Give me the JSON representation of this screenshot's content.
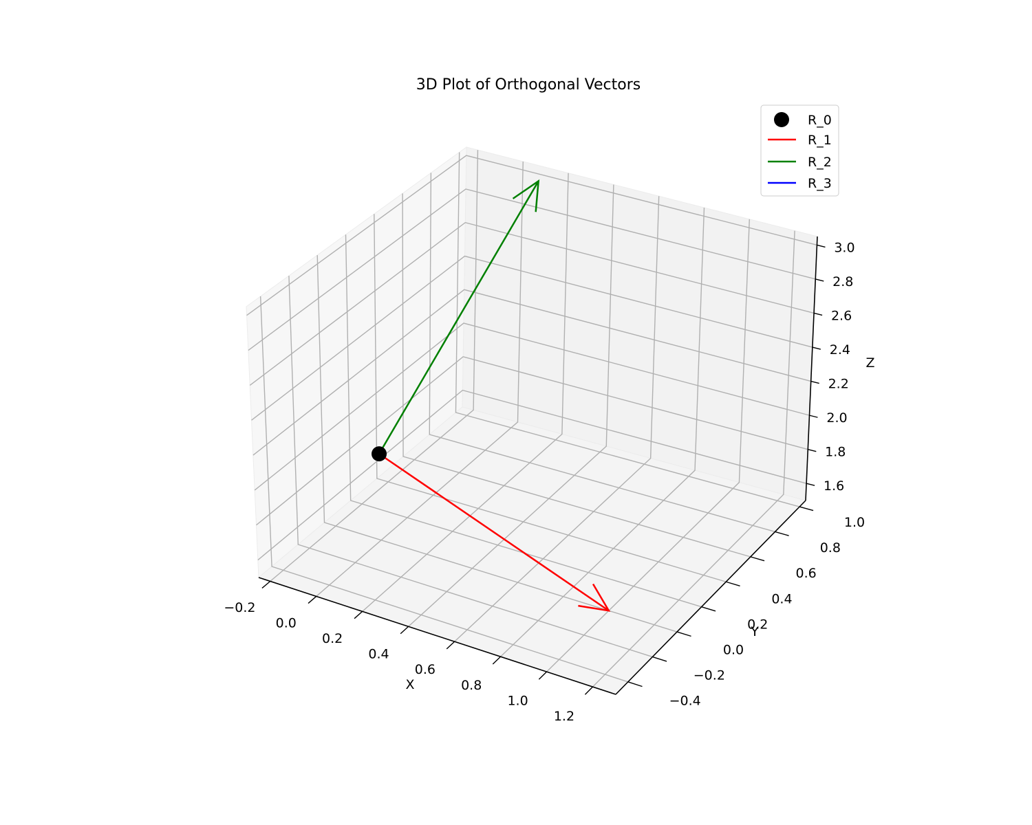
{
  "chart_data": {
    "type": "line",
    "projection": "3d",
    "title": "3D Plot of Orthogonal Vectors",
    "xlabel": "X",
    "ylabel": "Y",
    "zlabel": "Z",
    "xlim": [
      -0.25,
      1.3
    ],
    "ylim": [
      -0.5,
      1.05
    ],
    "zlim": [
      1.5,
      3.05
    ],
    "xticks": [
      "−0.2",
      "0.0",
      "0.2",
      "0.4",
      "0.6",
      "0.8",
      "1.0",
      "1.2"
    ],
    "yticks": [
      "−0.4",
      "−0.2",
      "0.0",
      "0.2",
      "0.4",
      "0.6",
      "0.8",
      "1.0"
    ],
    "zticks": [
      "1.6",
      "1.8",
      "2.0",
      "2.2",
      "2.4",
      "2.6",
      "2.8",
      "3.0"
    ],
    "grid": true,
    "legend": "top-right",
    "origin": {
      "name": "R_0",
      "x": 0.0,
      "y": 0.0,
      "z": 2.0,
      "color": "#000000"
    },
    "series": [
      {
        "name": "R_1",
        "color": "#ff0000",
        "start": [
          0.0,
          0.0,
          2.0
        ],
        "end": [
          1.0,
          0.0,
          1.5
        ]
      },
      {
        "name": "R_2",
        "color": "#008000",
        "start": [
          0.0,
          0.0,
          2.0
        ],
        "end": [
          0.1,
          1.0,
          3.0
        ]
      },
      {
        "name": "R_3",
        "color": "#0000ff",
        "start": [
          0.0,
          0.0,
          2.0
        ],
        "end": [
          0.0,
          0.0,
          2.0
        ]
      }
    ]
  }
}
